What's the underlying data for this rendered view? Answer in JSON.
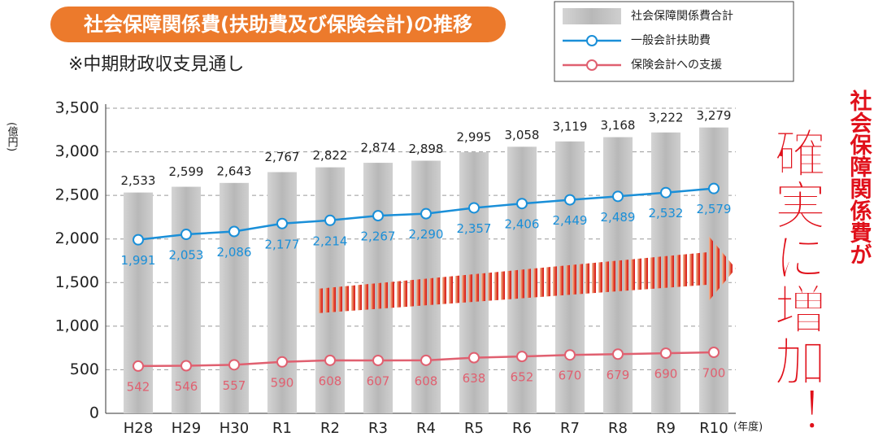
{
  "chart_data": {
    "type": "combo",
    "title": "社会保障関係費(扶助費及び保険会計)の推移",
    "subtitle": "※中期財政収支見通し",
    "y_label": "(億円)",
    "x_label": "(年度)",
    "annotation": [
      "社会保障関係費が",
      "確実に増加！"
    ],
    "categories": [
      "H28",
      "H29",
      "H30",
      "R1",
      "R2",
      "R3",
      "R4",
      "R5",
      "R6",
      "R7",
      "R8",
      "R9",
      "R10"
    ],
    "series": [
      {
        "name": "社会保障関係費合計",
        "type": "bar",
        "color": "#bdbdbd",
        "values": [
          2533,
          2599,
          2643,
          2767,
          2822,
          2874,
          2898,
          2995,
          3058,
          3119,
          3168,
          3222,
          3279
        ],
        "value_labels": [
          "2,533",
          "2,599",
          "2,643",
          "2,767",
          "2,822",
          "2,874",
          "2,898",
          "2,995",
          "3,058",
          "3,119",
          "3,168",
          "3,222",
          "3,279"
        ]
      },
      {
        "name": "一般会計扶助費",
        "type": "line",
        "color": "#1a8fd8",
        "values": [
          1991,
          2053,
          2086,
          2177,
          2214,
          2267,
          2290,
          2357,
          2406,
          2449,
          2489,
          2532,
          2579
        ],
        "value_labels": [
          "1,991",
          "2,053",
          "2,086",
          "2,177",
          "2,214",
          "2,267",
          "2,290",
          "2,357",
          "2,406",
          "2,449",
          "2,489",
          "2,532",
          "2,579"
        ]
      },
      {
        "name": "保険会計への支援",
        "type": "line",
        "color": "#e06070",
        "values": [
          542,
          546,
          557,
          590,
          608,
          607,
          608,
          638,
          652,
          670,
          679,
          690,
          700
        ]
      }
    ],
    "ylim": [
      0,
      3500
    ],
    "yticks": [
      0,
      500,
      {
        "value": 1000,
        "label": "1,000"
      },
      {
        "value": 1500,
        "label": "1,500"
      },
      {
        "value": 2000,
        "label": "2,000"
      },
      {
        "value": 2500,
        "label": "2,500"
      },
      {
        "value": 3000,
        "label": "3,000"
      },
      {
        "value": 3500,
        "label": "3,500"
      }
    ],
    "grid": true
  }
}
